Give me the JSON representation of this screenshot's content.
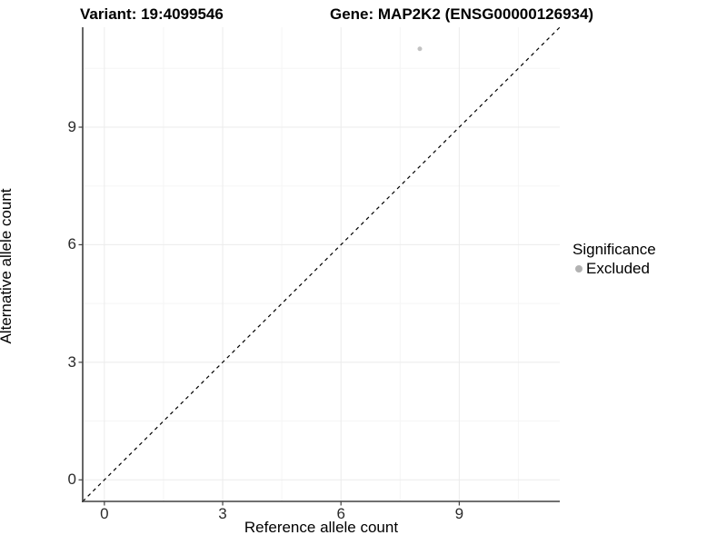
{
  "header": {
    "variant_title": "Variant: 19:4099546",
    "gene_title": "Gene: MAP2K2 (ENSG00000126934)"
  },
  "legend": {
    "title": "Significance",
    "items": [
      {
        "label": "Excluded",
        "marker": "circle-icon",
        "color": "#b2b2b2"
      }
    ]
  },
  "chart_data": {
    "type": "scatter",
    "title": "Variant: 19:4099546   Gene: MAP2K2 (ENSG00000126934)",
    "xlabel": "Reference allele count",
    "ylabel": "Alternative allele count",
    "x_domain": [
      -0.55,
      11.55
    ],
    "y_domain": [
      -0.55,
      11.55
    ],
    "x_ticks": [
      0,
      3,
      6,
      9
    ],
    "y_ticks": [
      0,
      3,
      6,
      9
    ],
    "x_minor_gridlines": [
      1.5,
      4.5,
      7.5,
      10.5
    ],
    "y_minor_gridlines": [
      1.5,
      4.5,
      7.5,
      10.5
    ],
    "grid": true,
    "legend_position": "right",
    "series": [
      {
        "name": "Excluded",
        "color": "#c2c2c2",
        "points": [
          {
            "x": 8,
            "y": 11
          }
        ]
      }
    ],
    "reference_line": {
      "kind": "identity",
      "equation": "y = x",
      "style": "dashed",
      "color": "#000000"
    }
  },
  "colors": {
    "background": "#ffffff",
    "axis_line": "#404040",
    "tick_mark": "#404040",
    "grid_major": "#ebebeb",
    "grid_minor": "#f5f5f5",
    "point": "#c2c2c2",
    "legend_marker": "#b2b2b2"
  }
}
